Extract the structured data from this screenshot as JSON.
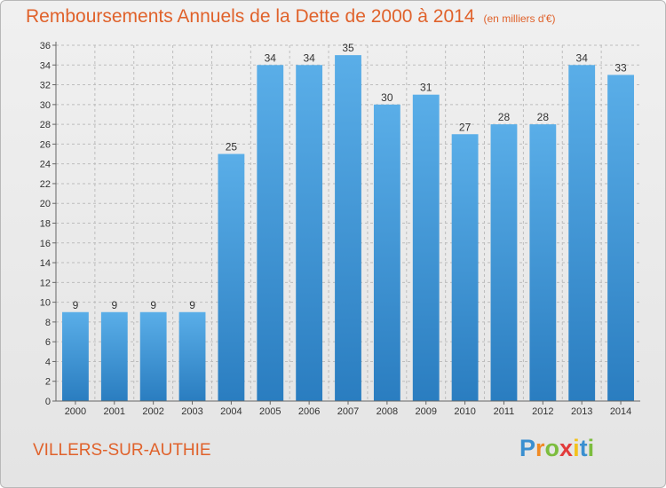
{
  "title": "Remboursements Annuels de la Dette de 2000 à 2014",
  "unit": "(en milliers d'€)",
  "commune": "VILLERS-SUR-AUTHIE",
  "brand": {
    "letters": [
      "P",
      "r",
      "o",
      "x",
      "i",
      "t",
      "i"
    ],
    "colors": [
      "#3a8fd0",
      "#f08a24",
      "#7cbd3e",
      "#e23b3b",
      "#f3c21d",
      "#3a8fd0",
      "#7cbd3e"
    ]
  },
  "colors": {
    "bar_top": "#5aaee8",
    "bar_bottom": "#2a7dc0",
    "title": "#e0622b",
    "grid": "#bdbdbd"
  },
  "chart_data": {
    "type": "bar",
    "title": "Remboursements Annuels de la Dette de 2000 à 2014",
    "ylabel": "(en milliers d'€)",
    "xlabel": "",
    "categories": [
      "2000",
      "2001",
      "2002",
      "2003",
      "2004",
      "2005",
      "2006",
      "2007",
      "2008",
      "2009",
      "2010",
      "2011",
      "2012",
      "2013",
      "2014"
    ],
    "values": [
      9,
      9,
      9,
      9,
      25,
      34,
      34,
      35,
      30,
      31,
      27,
      28,
      28,
      34,
      33
    ],
    "ylim": [
      0,
      36
    ],
    "yticks": [
      0,
      2,
      4,
      6,
      8,
      10,
      12,
      14,
      16,
      18,
      20,
      22,
      24,
      26,
      28,
      30,
      32,
      34,
      36
    ],
    "grid": true
  }
}
